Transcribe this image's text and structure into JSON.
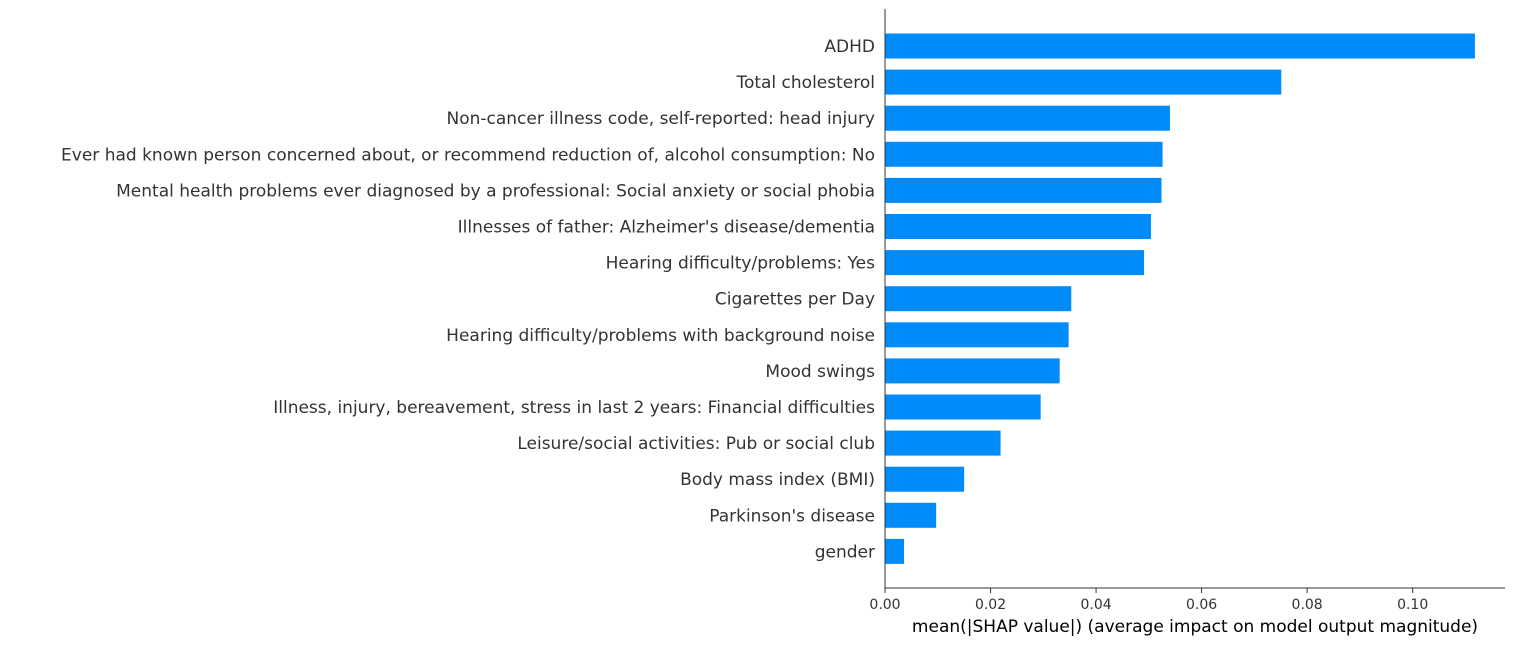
{
  "chart_data": {
    "type": "bar",
    "orientation": "horizontal",
    "categories": [
      "ADHD",
      "Total cholesterol",
      "Non-cancer illness code, self-reported: head injury",
      "Ever had known person concerned about, or recommend reduction of, alcohol consumption: No",
      "Mental health problems ever diagnosed by a professional: Social anxiety or social phobia",
      "Illnesses of father: Alzheimer's disease/dementia",
      "Hearing difficulty/problems: Yes",
      "Cigarettes per Day",
      "Hearing difficulty/problems with background noise",
      "Mood swings",
      "Illness, injury, bereavement, stress in last 2 years: Financial difficulties",
      "Leisure/social activities: Pub or social club",
      "Body mass index (BMI)",
      "Parkinson's disease",
      "gender"
    ],
    "values": [
      0.1118,
      0.0751,
      0.054,
      0.0526,
      0.0524,
      0.0504,
      0.0491,
      0.0353,
      0.0348,
      0.0331,
      0.0295,
      0.0219,
      0.015,
      0.0097,
      0.0036
    ],
    "title": "",
    "xlabel": "mean(|SHAP value|) (average impact on model output magnitude)",
    "ylabel": "",
    "xlim": [
      0,
      0.1175
    ],
    "xticks": [
      0,
      0.02,
      0.04,
      0.06,
      0.08,
      0.1
    ],
    "xtick_labels": [
      "0.00",
      "0.02",
      "0.04",
      "0.06",
      "0.08",
      "0.10"
    ],
    "bar_color": "#008bfb",
    "axis_color": "#333333",
    "grid": false,
    "legend": "none"
  }
}
